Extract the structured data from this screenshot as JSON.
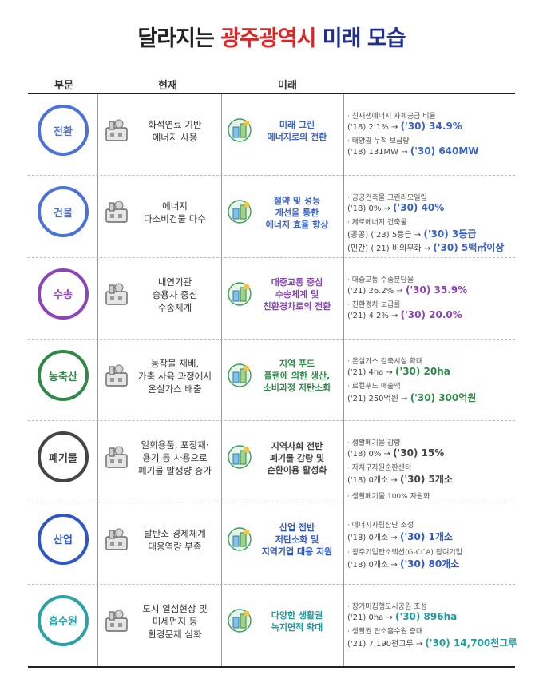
{
  "title": {
    "part1": "달라지는 ",
    "part2": "광주광역시",
    "part3": " 미래 모습"
  },
  "headers": {
    "sector": "부문",
    "current": "현재",
    "future": "미래"
  },
  "rows": [
    {
      "sector": "전환",
      "color": "#4a72d9",
      "future_color": "#3a63c8",
      "current": [
        "화석연료 기반",
        "에너지 사용"
      ],
      "future": [
        "미래 그린",
        "에너지로의 전환"
      ],
      "metrics": [
        {
          "label": "· 신재생에너지 자체공급 비율",
          "base": "('18) 2.1% → ",
          "target": "('30) 34.9%"
        },
        {
          "label": "· 태양광 누적 보급량",
          "base": "('18) 131MW → ",
          "target": "('30) 640MW"
        }
      ],
      "note": ""
    },
    {
      "sector": "건물",
      "color": "#4a72d9",
      "future_color": "#3a63c8",
      "current": [
        "에너지",
        "다소비건물 다수"
      ],
      "future": [
        "절약 및 성능",
        "개선을 통한",
        "에너지 효율 향상"
      ],
      "metrics": [
        {
          "label": "· 공공건축물 그린리모델링",
          "base": "('18) 0% → ",
          "target": "('30) 40%"
        },
        {
          "label": "· 제로에너지 건축물",
          "base": "(공공) ('23) 5등급 → ",
          "target": "('30) 3등급"
        },
        {
          "label": "",
          "base": "(민간) ('21) 비의무화 → ",
          "target": "('30) 5백㎡이상"
        }
      ],
      "note": ""
    },
    {
      "sector": "수송",
      "color": "#8a44b8",
      "future_color": "#8a44b8",
      "current": [
        "내연기관",
        "승용차 중심",
        "수송체계"
      ],
      "future": [
        "대중교통 중심",
        "수송체계 및",
        "친환경차로의 전환"
      ],
      "metrics": [
        {
          "label": "· 대중교통 수송분담율",
          "base": "('21) 26.2% → ",
          "target": "('30) 35.9%"
        },
        {
          "label": "· 친환경차 보급률",
          "base": "('21) 4.2% → ",
          "target": "('30) 20.0%"
        }
      ],
      "note": ""
    },
    {
      "sector": "농축산",
      "color": "#2f8a4a",
      "future_color": "#2f8a4a",
      "current": [
        "농작물 재배,",
        "가축 사육 과정에서",
        "온실가스 배출"
      ],
      "future": [
        "지역 푸드",
        "플랜에 의한 생산,",
        "소비과정 저탄소화"
      ],
      "metrics": [
        {
          "label": "· 온실가스 감축시설 확대",
          "base": "('21) 4ha → ",
          "target": "('30) 20ha"
        },
        {
          "label": "· 로컬푸드 매출액",
          "base": "('21) 250억원 → ",
          "target": "('30) 300억원"
        }
      ],
      "note": ""
    },
    {
      "sector": "폐기물",
      "color": "#444444",
      "future_color": "#444444",
      "current": [
        "일회용품, 포장재·",
        "용기 등 사용으로",
        "폐기물 발생량 증가"
      ],
      "future": [
        "지역사회 전반",
        "폐기물 감량 및",
        "순환이용 활성화"
      ],
      "metrics": [
        {
          "label": "· 생활폐기물 감량",
          "base": "('18) 0% → ",
          "target": "('30) 15%"
        },
        {
          "label": "· 자치구자원순환센터",
          "base": "('18) 0개소 → ",
          "target": "('30) 5개소"
        }
      ],
      "note": "· 생활폐기물 100% 자원화"
    },
    {
      "sector": "산업",
      "color": "#2f56c6",
      "future_color": "#2f56c6",
      "current": [
        "탈탄소 경제체계",
        "대응역량 부족"
      ],
      "future": [
        "산업 전반",
        "저탄소화 및",
        "지역기업 대응 지원"
      ],
      "metrics": [
        {
          "label": "· 에너지자립산단 조성",
          "base": "('18) 0개소 → ",
          "target": "('30) 1개소"
        },
        {
          "label": "· 광주기업탄소액션(G-CCA) 참여기업",
          "base": "('18) 0개소 → ",
          "target": "('30) 80개소"
        }
      ],
      "note": ""
    },
    {
      "sector": "흡수원",
      "color": "#2aa3a8",
      "future_color": "#1f9aa0",
      "current": [
        "도시 열섬현상 및",
        "미세먼지 등",
        "환경문제 심화"
      ],
      "future": [
        "다양한 생활권",
        "녹지면적 확대"
      ],
      "metrics": [
        {
          "label": "· 장기미집행도시공원 조성",
          "base": "('21) 0ha → ",
          "target": "('30) 896ha"
        },
        {
          "label": "· 생활권 탄소흡수원 증대",
          "base": "('21) 7,190천그루 → ",
          "target": "('30) 14,700천그루"
        }
      ],
      "note": ""
    }
  ],
  "icons": {
    "current": [
      "factory-smoke-icon",
      "building-energy-icon",
      "car-icon",
      "cow-icon",
      "waste-bottles-icon",
      "factory-co2-icon",
      "city-dust-icon"
    ],
    "future": [
      "solar-city-icon",
      "eco-car-gear-icon",
      "eco-bus-icon",
      "eco-cow-icon",
      "recycle-bottle-icon",
      "earth-co2-icon",
      "trees-icon"
    ]
  }
}
